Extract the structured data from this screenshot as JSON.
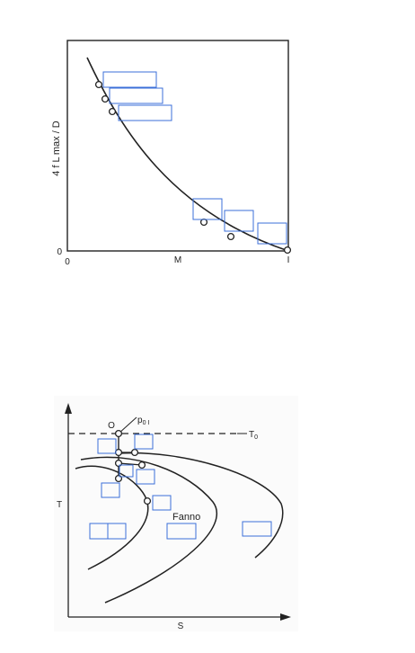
{
  "top_chart": {
    "ylabel": "4 f L max / D",
    "xlabel": "M",
    "tick_x0": "0",
    "tick_x1": "I",
    "tick_y0": "0",
    "markers": 6,
    "label_boxes": 6
  },
  "bottom_chart": {
    "ylabel": "T",
    "xlabel": "S",
    "point_label": "O",
    "pressure_label": "p",
    "pressure_sub": "0 I",
    "temp_label": "T",
    "temp_sub": "0",
    "curve_label": "Fanno",
    "markers": 7,
    "label_boxes": 10
  },
  "colors": {
    "ink": "#222222",
    "box_outline": "#3b6fd8",
    "background": "#ffffff",
    "panel_tint": "#fbfbfb"
  }
}
